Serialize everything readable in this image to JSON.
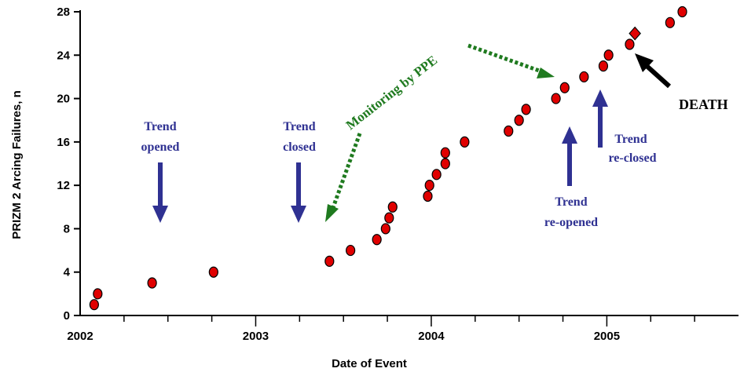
{
  "chart_data": {
    "type": "scatter",
    "xlabel": "Date of Event",
    "ylabel": "PRIZM 2 Arcing Failures, n",
    "xlim": [
      2002.0,
      2005.75
    ],
    "ylim": [
      0,
      28
    ],
    "x_tick_labels": [
      "2002",
      "2003",
      "2004",
      "2005"
    ],
    "x_ticks": [
      2002,
      2003,
      2004,
      2005
    ],
    "y_ticks": [
      0,
      4,
      8,
      12,
      16,
      20,
      24,
      28
    ],
    "y_tick_labels": [
      "0",
      "4",
      "8",
      "12",
      "16",
      "20",
      "24",
      "28"
    ],
    "marker_color": "#e00000",
    "series": [
      {
        "marker": "circle",
        "points": [
          {
            "x": 2002.08,
            "y": 1
          },
          {
            "x": 2002.1,
            "y": 2
          },
          {
            "x": 2002.41,
            "y": 3
          },
          {
            "x": 2002.76,
            "y": 4
          },
          {
            "x": 2003.42,
            "y": 5
          },
          {
            "x": 2003.54,
            "y": 6
          },
          {
            "x": 2003.69,
            "y": 7
          },
          {
            "x": 2003.74,
            "y": 8
          },
          {
            "x": 2003.76,
            "y": 9
          },
          {
            "x": 2003.78,
            "y": 10
          },
          {
            "x": 2003.98,
            "y": 11
          },
          {
            "x": 2003.99,
            "y": 12
          },
          {
            "x": 2004.03,
            "y": 13
          },
          {
            "x": 2004.08,
            "y": 14
          },
          {
            "x": 2004.08,
            "y": 15
          },
          {
            "x": 2004.19,
            "y": 16
          },
          {
            "x": 2004.44,
            "y": 17
          },
          {
            "x": 2004.5,
            "y": 18
          },
          {
            "x": 2004.54,
            "y": 19
          },
          {
            "x": 2004.71,
            "y": 20
          },
          {
            "x": 2004.76,
            "y": 21
          },
          {
            "x": 2004.87,
            "y": 22
          },
          {
            "x": 2004.98,
            "y": 23
          },
          {
            "x": 2005.01,
            "y": 24
          },
          {
            "x": 2005.13,
            "y": 25
          },
          {
            "x": 2005.36,
            "y": 27
          },
          {
            "x": 2005.43,
            "y": 28
          }
        ]
      },
      {
        "marker": "diamond",
        "points": [
          {
            "x": 2005.16,
            "y": 26
          }
        ]
      }
    ],
    "annotations": {
      "trend_opened": {
        "lines": [
          "Trend",
          "opened"
        ]
      },
      "trend_closed": {
        "lines": [
          "Trend",
          "closed"
        ]
      },
      "trend_reopened": {
        "lines": [
          "Trend",
          "re-opened"
        ]
      },
      "trend_reclosed": {
        "lines": [
          "Trend",
          "re-closed"
        ]
      },
      "monitoring": "Monitoring by PPE",
      "death": "DEATH"
    },
    "colors": {
      "annotation_blue": "#2f3192",
      "annotation_green": "#1f7a1f",
      "death_arrow": "#000000"
    }
  }
}
